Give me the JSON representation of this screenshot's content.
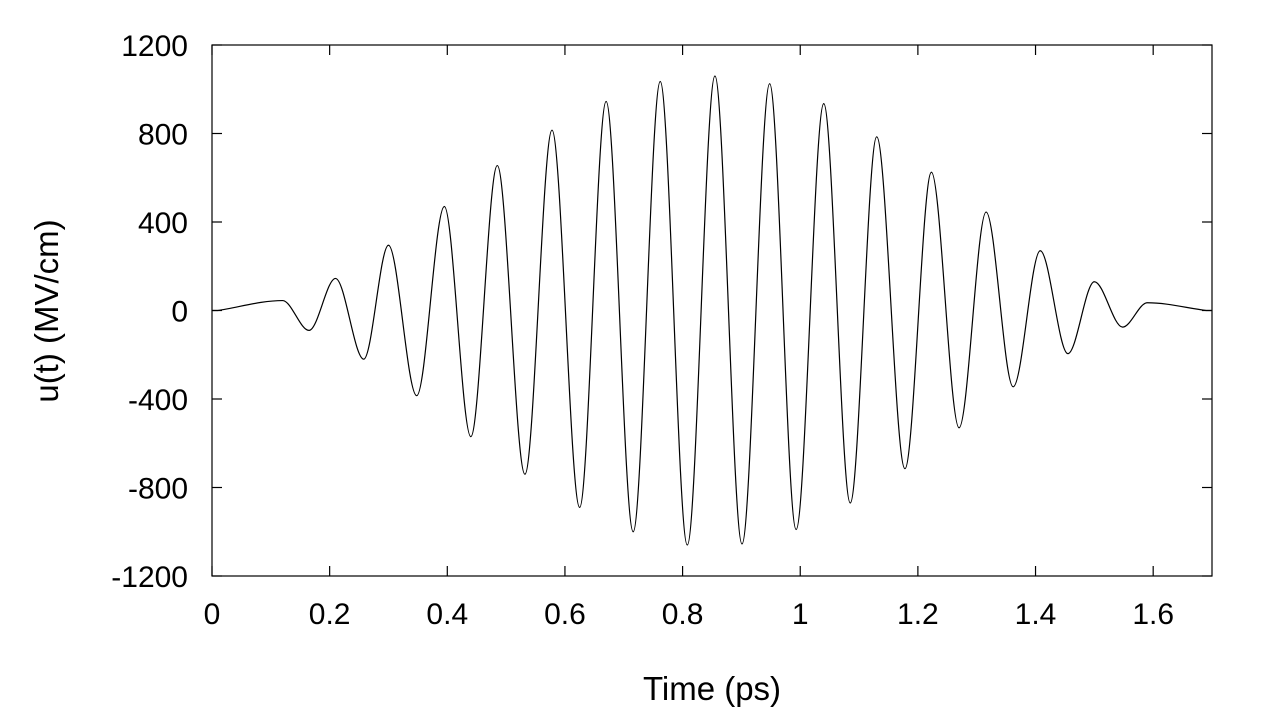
{
  "chart_data": {
    "type": "line",
    "title": "",
    "xlabel": "Time (ps)",
    "ylabel": "u(t) (MV/cm)",
    "xlim": [
      0,
      1.7
    ],
    "ylim": [
      -1200,
      1200
    ],
    "x_ticks": [
      "0",
      "0.2",
      "0.4",
      "0.6",
      "0.8",
      "1",
      "1.2",
      "1.4",
      "1.6"
    ],
    "y_ticks": [
      "1200",
      "800",
      "400",
      "0",
      "-400",
      "-800",
      "-1200"
    ],
    "grid": false,
    "legend": "none",
    "line_color": "#000000",
    "series": [
      {
        "x": [
          0.01,
          0.12,
          0.165,
          0.21,
          0.258,
          0.3,
          0.348,
          0.395,
          0.44,
          0.485,
          0.532,
          0.578,
          0.625,
          0.67,
          0.716,
          0.762,
          0.808,
          0.855,
          0.901,
          0.948,
          0.993,
          1.04,
          1.085,
          1.13,
          1.178,
          1.223,
          1.27,
          1.316,
          1.362,
          1.408,
          1.455,
          1.5,
          1.548,
          1.59,
          1.69
        ],
        "y": [
          0,
          45,
          -90,
          145,
          -220,
          295,
          -385,
          470,
          -570,
          655,
          -740,
          815,
          -890,
          945,
          -1000,
          1035,
          -1060,
          1060,
          -1055,
          1025,
          -990,
          935,
          -870,
          785,
          -715,
          625,
          -530,
          445,
          -345,
          270,
          -195,
          130,
          -75,
          35,
          0
        ]
      }
    ]
  }
}
